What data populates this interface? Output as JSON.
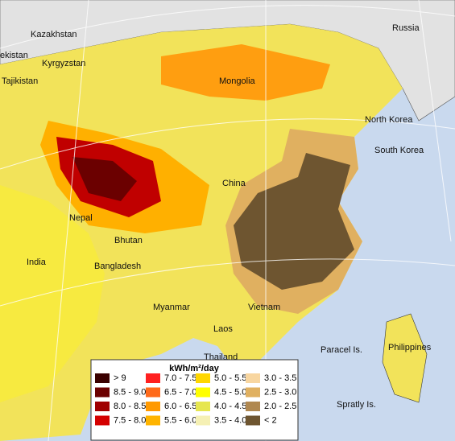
{
  "map": {
    "labels": [
      "Kazakhstan",
      "Russia",
      "ekistan",
      "Kyrgyzstan",
      "Tajikistan",
      "Mongolia",
      "North Korea",
      "South Korea",
      "China",
      "Nepal",
      "Bhutan",
      "Bangladesh",
      "India",
      "Myanmar",
      "Vietnam",
      "Laos",
      "Thailand",
      "Paracel Is.",
      "Philippines",
      "Spratly Is."
    ]
  },
  "legend": {
    "title": "kWh/m²/day",
    "items": [
      {
        "label": "> 9",
        "color": "#3a0000"
      },
      {
        "label": "8.5 - 9.0",
        "color": "#6b0000"
      },
      {
        "label": "8.0 - 8.5",
        "color": "#a00000"
      },
      {
        "label": "7.5 - 8.0",
        "color": "#d40000"
      },
      {
        "label": "7.0 - 7.5",
        "color": "#ff2020"
      },
      {
        "label": "6.5 - 7.0",
        "color": "#ff6a1a"
      },
      {
        "label": "6.0 - 6.5",
        "color": "#ff9900"
      },
      {
        "label": "5.5 - 6.0",
        "color": "#ffb400"
      },
      {
        "label": "5.0 - 5.5",
        "color": "#ffd700"
      },
      {
        "label": "4.5 - 5.0",
        "color": "#ffff00"
      },
      {
        "label": "4.0 - 4.5",
        "color": "#e6e650"
      },
      {
        "label": "3.5 - 4.0",
        "color": "#f5f0b4"
      },
      {
        "label": "3.0 - 3.5",
        "color": "#f8d6a0"
      },
      {
        "label": "2.5 - 3.0",
        "color": "#e0b060"
      },
      {
        "label": "2.0 - 2.5",
        "color": "#b08850"
      },
      {
        "label": "< 2",
        "color": "#6e5530"
      }
    ]
  }
}
